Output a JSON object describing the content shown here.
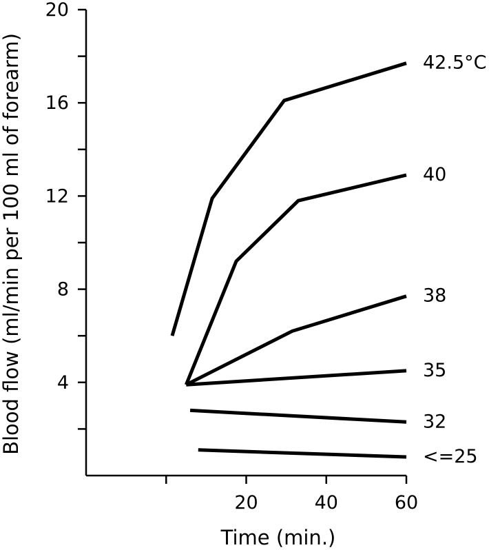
{
  "chart_data": {
    "type": "line",
    "title": "",
    "xlabel": "Time (min.)",
    "ylabel": "Blood flow (ml/min per 100 ml of forearm)",
    "xlim": [
      -20,
      60
    ],
    "ylim": [
      0,
      20
    ],
    "x_ticks": [
      20,
      40,
      60
    ],
    "x_minor_ticks": [
      0
    ],
    "y_ticks": [
      4,
      8,
      12,
      16,
      20
    ],
    "y_minor_ticks": [
      2,
      6,
      10,
      14,
      18
    ],
    "grid": false,
    "legend": "none",
    "series": [
      {
        "name": "42.5°C",
        "points": [
          [
            1.5,
            6.0
          ],
          [
            11.5,
            11.9
          ],
          [
            29.5,
            16.1
          ],
          [
            60,
            17.7
          ]
        ]
      },
      {
        "name": "40",
        "points": [
          [
            5,
            3.9
          ],
          [
            17.5,
            9.2
          ],
          [
            33,
            11.8
          ],
          [
            60,
            12.9
          ]
        ]
      },
      {
        "name": "38",
        "points": [
          [
            5,
            3.9
          ],
          [
            31.5,
            6.2
          ],
          [
            60,
            7.7
          ]
        ]
      },
      {
        "name": "35",
        "points": [
          [
            5,
            3.9
          ],
          [
            60,
            4.5
          ]
        ]
      },
      {
        "name": "32",
        "points": [
          [
            6,
            2.8
          ],
          [
            60,
            2.3
          ]
        ]
      },
      {
        "name": "<=25",
        "points": [
          [
            8,
            1.1
          ],
          [
            60,
            0.8
          ]
        ]
      }
    ]
  }
}
